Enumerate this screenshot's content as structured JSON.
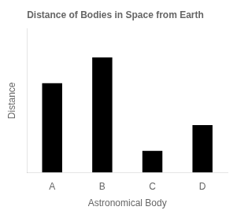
{
  "chart_data": {
    "type": "bar",
    "title": "Distance of Bodies in Space from Earth",
    "xlabel": "Astronomical Body",
    "ylabel": "Distance",
    "categories": [
      "A",
      "B",
      "C",
      "D"
    ],
    "values": [
      62,
      80,
      15,
      33
    ],
    "color": "#000000",
    "ylim": [
      0,
      100
    ],
    "grid": false,
    "tick_labels": "x"
  }
}
